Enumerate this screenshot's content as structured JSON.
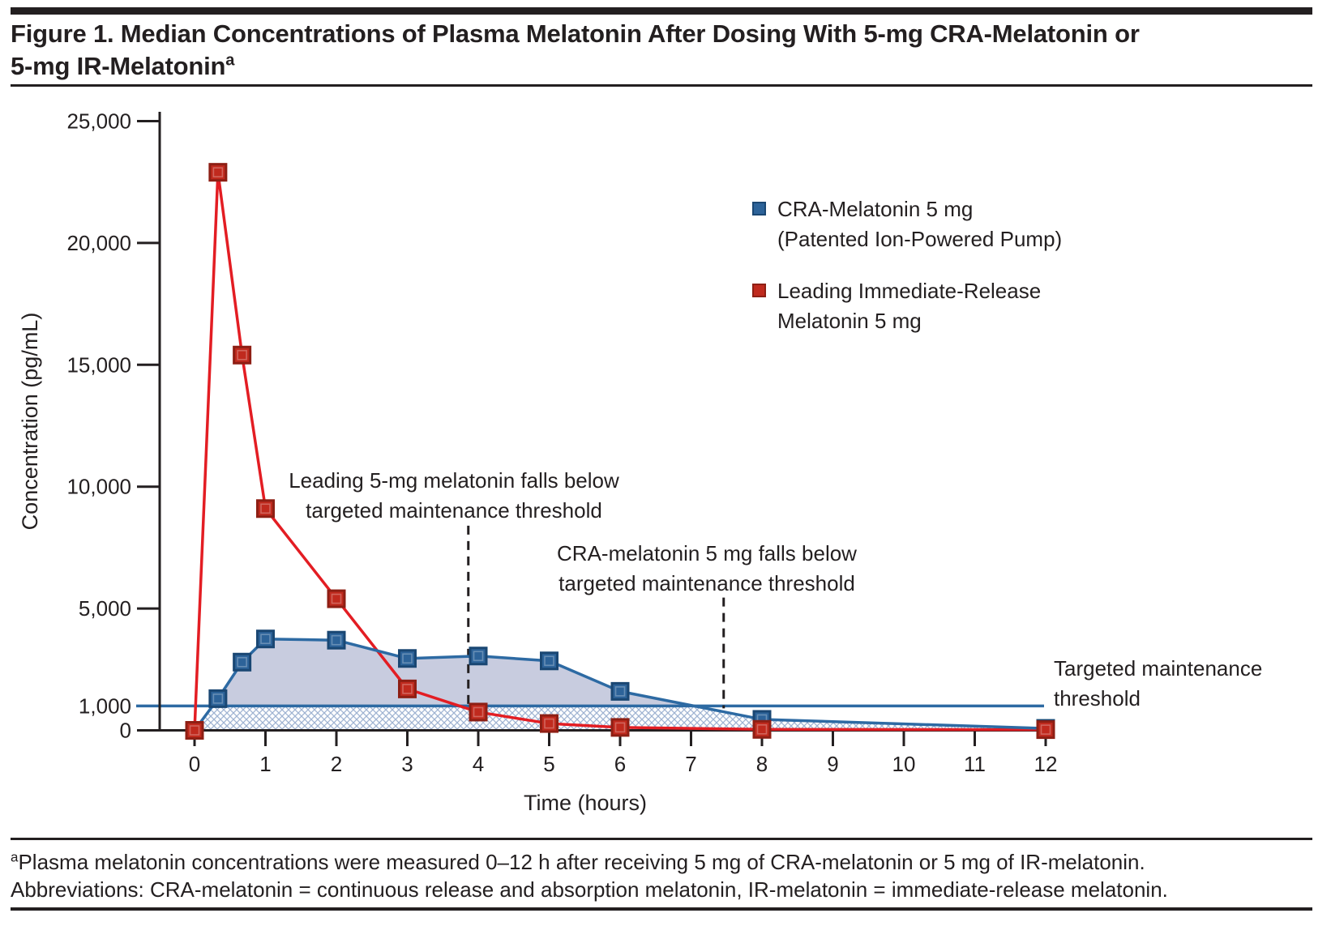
{
  "figure": {
    "title_line1": "Figure 1. Median Concentrations of Plasma Melatonin After Dosing With 5-mg CRA-Melatonin or",
    "title_line2": "5-mg IR-Melatonin",
    "title_superscript": "a",
    "footnote_superscript": "a",
    "footnote_line1": "Plasma melatonin concentrations were measured 0–12 h after receiving 5 mg of CRA-melatonin or 5 mg of IR-melatonin.",
    "footnote_line2": "Abbreviations: CRA-melatonin = continuous release and absorption melatonin, IR-melatonin = immediate-release melatonin."
  },
  "chart_data": {
    "type": "line",
    "title": "",
    "xlabel": "Time (hours)",
    "ylabel": "Concentration (pg/mL)",
    "xlim": [
      0,
      12
    ],
    "ylim": [
      0,
      25000
    ],
    "grid": false,
    "legend_position": "upper-right-inside",
    "x_ticks": [
      0,
      1,
      2,
      3,
      4,
      5,
      6,
      7,
      8,
      9,
      10,
      11,
      12
    ],
    "y_ticks": [
      {
        "v": 25000,
        "label": "25,000"
      },
      {
        "v": 20000,
        "label": "20,000"
      },
      {
        "v": 15000,
        "label": "15,000"
      },
      {
        "v": 10000,
        "label": "10,000"
      },
      {
        "v": 5000,
        "label": "5,000"
      },
      {
        "v": 1000,
        "label": "1,000"
      },
      {
        "v": 0,
        "label": "0"
      }
    ],
    "series": [
      {
        "name": "CRA-Melatonin 5 mg (Patented Ion-Powered Pump)",
        "color": "#2d6aa3",
        "marker": "square",
        "marker_fill": "#2d6399",
        "marker_border": "#1a4773",
        "x": [
          0,
          0.33,
          0.67,
          1,
          2,
          3,
          4,
          5,
          6,
          8,
          12
        ],
        "y": [
          0,
          1300,
          2800,
          3750,
          3700,
          2950,
          3050,
          2850,
          1600,
          450,
          80
        ],
        "area_fill": "#c8ccdf"
      },
      {
        "name": "Leading Immediate-Release Melatonin 5 mg",
        "color": "#e31d23",
        "marker": "square",
        "marker_fill": "#c02a1e",
        "marker_border": "#8e1f14",
        "x": [
          0,
          0.33,
          0.67,
          1,
          2,
          3,
          4,
          5,
          6,
          8,
          12
        ],
        "y": [
          0,
          22900,
          15400,
          9100,
          5400,
          1700,
          750,
          280,
          120,
          40,
          30
        ]
      }
    ],
    "threshold": {
      "value": 1000,
      "color": "#2d6aa3",
      "hatch_color": "#9fb3d2",
      "label_line1": "Targeted maintenance",
      "label_line2": "threshold"
    },
    "event_lines": [
      {
        "t": 3.86,
        "v_top": 8400,
        "v_bottom": 1000
      },
      {
        "t": 7.46,
        "v_top": 5450,
        "v_bottom": 1000
      }
    ],
    "legend": [
      {
        "line1": "CRA-Melatonin 5 mg",
        "line2": "(Patented Ion-Powered Pump)",
        "swatch_fill": "#2d6399",
        "swatch_border": "#1a4773"
      },
      {
        "line1": "Leading Immediate-Release",
        "line2": "Melatonin 5 mg",
        "swatch_fill": "#c02a1e",
        "swatch_border": "#8e1f14"
      }
    ],
    "annotations": [
      {
        "line1": "Leading 5-mg melatonin falls below",
        "line2": "targeted maintenance threshold"
      },
      {
        "line1": "CRA-melatonin 5 mg falls below",
        "line2": "targeted maintenance threshold"
      }
    ]
  }
}
